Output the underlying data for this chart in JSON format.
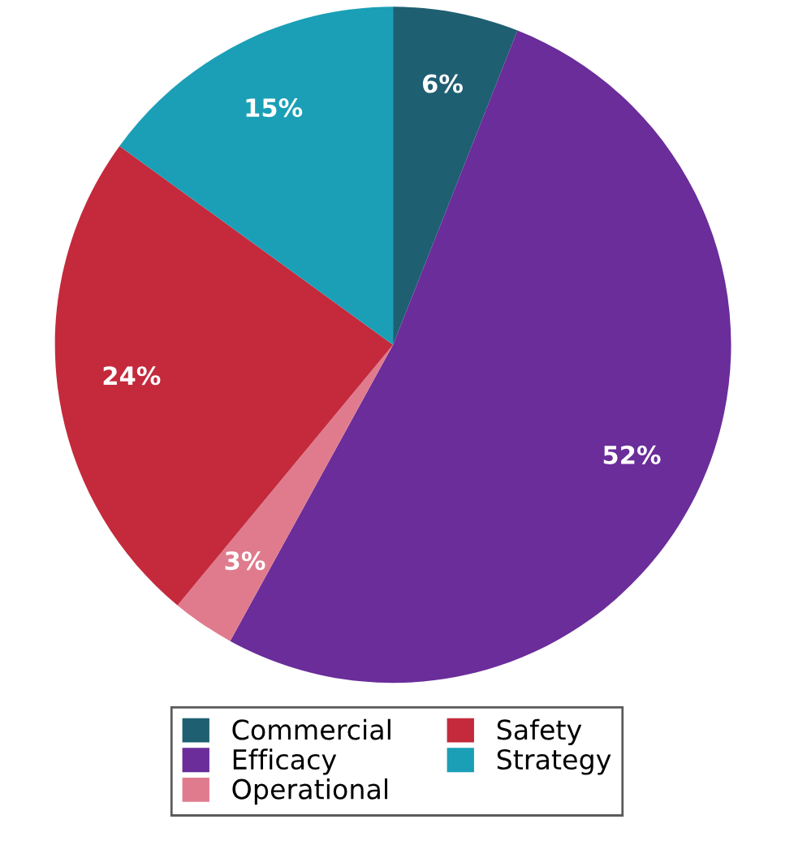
{
  "chart_data": {
    "type": "pie",
    "categories": [
      "Commercial",
      "Efficacy",
      "Operational",
      "Safety",
      "Strategy"
    ],
    "values": [
      6,
      52,
      3,
      24,
      15
    ],
    "colors": [
      "#1f5f72",
      "#6a2d9a",
      "#e07b8e",
      "#c42a3c",
      "#1a9fb6"
    ],
    "value_labels": [
      "6%",
      "52%",
      "3%",
      "24%",
      "15%"
    ],
    "legend": "bottom"
  }
}
